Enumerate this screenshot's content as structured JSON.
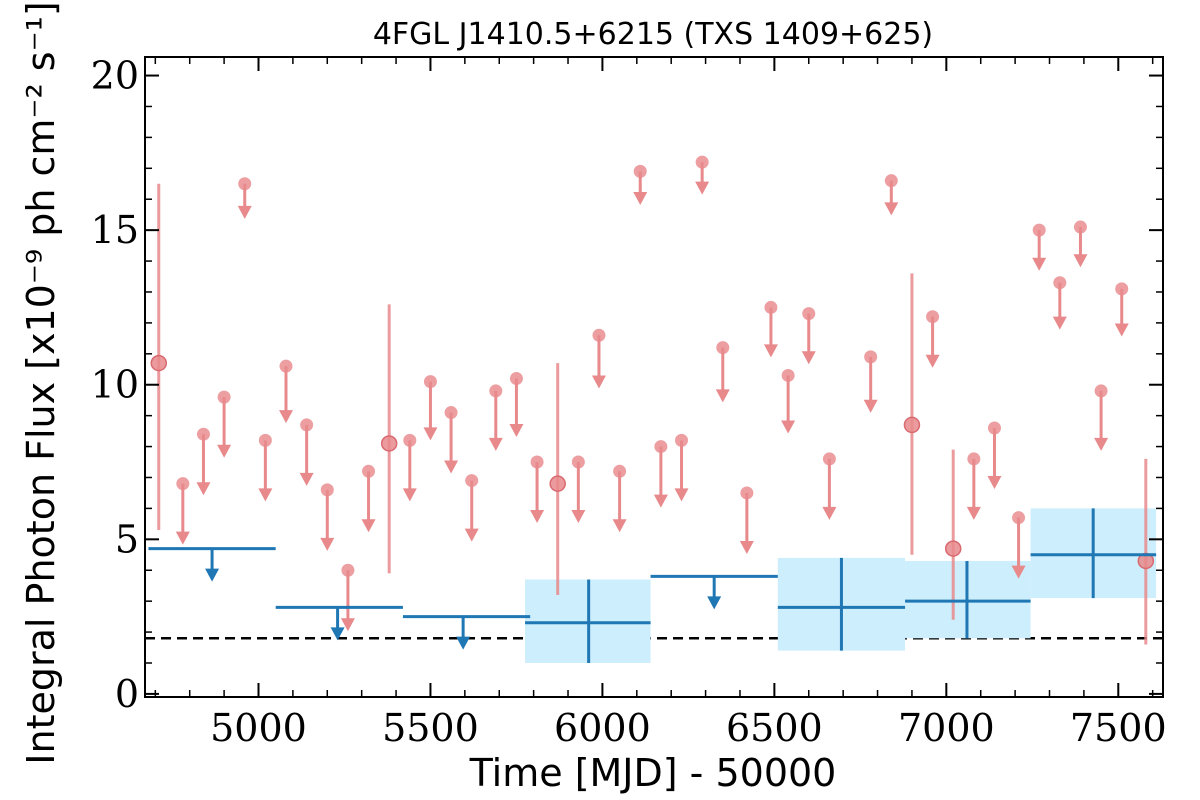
{
  "chart_data": {
    "type": "scatter",
    "title": "4FGL J1410.5+6215 (TXS 1409+625)",
    "xlabel": "Time [MJD] - 50000",
    "ylabel": "Integral Photon Flux [x10⁻⁹ ph cm⁻² s⁻¹]",
    "xlim": [
      4670,
      7630
    ],
    "ylim": [
      -0.1,
      20.6
    ],
    "x_ticks": [
      5000,
      5500,
      6000,
      6500,
      7000,
      7500
    ],
    "y_ticks": [
      0,
      5,
      10,
      15,
      20
    ],
    "reference_line": 1.8,
    "colors": {
      "fine_bins": "#e8898c",
      "coarse_bins": "#1f77b4",
      "error_box": "#cdeefc",
      "reference": "#000000"
    },
    "series": [
      {
        "kind": "fine_upper_limits",
        "x": [
          4780,
          4840,
          4900,
          4960,
          5020,
          5080,
          5140,
          5200,
          5260,
          5320,
          5440,
          5500,
          5560,
          5620,
          5690,
          5750,
          5810,
          5930,
          5990,
          6050,
          6110,
          6170,
          6230,
          6290,
          6350,
          6420,
          6490,
          6540,
          6600,
          6660,
          6780,
          6840,
          6960,
          7080,
          7140,
          7210,
          7270,
          7330,
          7390,
          7450,
          7510
        ],
        "y": [
          6.8,
          8.4,
          9.6,
          16.5,
          8.2,
          10.6,
          8.7,
          6.6,
          4.0,
          7.2,
          8.2,
          10.1,
          9.1,
          6.9,
          9.8,
          10.2,
          7.5,
          7.5,
          11.6,
          7.2,
          16.9,
          8.0,
          8.2,
          17.2,
          11.2,
          6.5,
          12.5,
          10.3,
          12.3,
          7.6,
          10.9,
          16.6,
          12.2,
          7.6,
          8.6,
          5.7,
          15.0,
          13.3,
          15.1,
          9.8,
          13.1
        ]
      },
      {
        "kind": "fine_detections",
        "x": [
          4710,
          5380,
          5870,
          6900,
          7020,
          7580
        ],
        "y": [
          10.7,
          8.1,
          6.8,
          8.7,
          4.7,
          4.3
        ],
        "err_low": [
          5.3,
          3.9,
          3.2,
          4.5,
          2.4,
          1.6
        ],
        "err_high": [
          16.5,
          12.6,
          10.7,
          13.6,
          7.9,
          7.6
        ]
      },
      {
        "kind": "coarse_upper_limits",
        "x_start": [
          4680,
          5050,
          5420,
          6140
        ],
        "x_end": [
          5050,
          5420,
          5790,
          6510
        ],
        "y": [
          4.7,
          2.8,
          2.5,
          3.8
        ],
        "arrow_x": [
          4865,
          5230,
          5595,
          6325
        ]
      },
      {
        "kind": "coarse_detections",
        "x_start": [
          5775,
          6510,
          6880,
          7245
        ],
        "x_end": [
          6140,
          6880,
          7245,
          7610
        ],
        "x_center": [
          5960,
          6695,
          7060,
          7427
        ],
        "y": [
          2.3,
          2.8,
          3.0,
          4.5
        ],
        "err_low": [
          1.0,
          1.4,
          1.8,
          3.1
        ],
        "err_high": [
          3.7,
          4.4,
          4.3,
          6.0
        ]
      }
    ]
  }
}
